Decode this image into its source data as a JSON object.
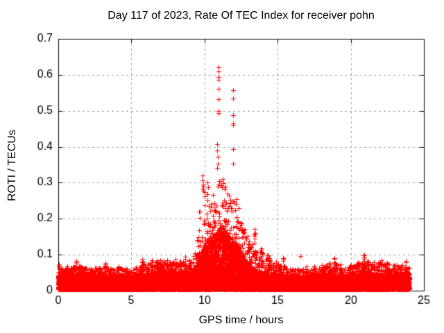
{
  "page": {
    "background": "#ffffff"
  },
  "chart_data": {
    "type": "scatter",
    "title": "Day 117 of 2023, Rate Of TEC Index for receiver pohn",
    "xlabel": "GPS time / hours",
    "ylabel": "ROTI / TECUs",
    "xlim": [
      0,
      25
    ],
    "ylim": [
      0,
      0.7
    ],
    "xticks": [
      0,
      5,
      10,
      15,
      20,
      25
    ],
    "xtick_labels": [
      "0",
      "5",
      "10",
      "15",
      "20",
      "25"
    ],
    "ytick_values": [
      0,
      0.1,
      0.2,
      0.3,
      0.4,
      0.5,
      0.6,
      0.7
    ],
    "ytick_labels": [
      "0",
      "0.1",
      "0.2",
      "0.3",
      "0.4",
      "0.5",
      "0.6",
      "0.7"
    ],
    "grid": true,
    "legend": "none",
    "marker": {
      "shape": "plus",
      "size": 7,
      "color": "#ff0000"
    },
    "axis_color": "#000000",
    "grid_color": "#a0a0a0",
    "text_color": "#000000",
    "data_time_range": [
      0,
      24
    ],
    "envelope": [
      [
        0.0,
        0.045,
        0.065
      ],
      [
        1.0,
        0.045,
        0.07
      ],
      [
        2.0,
        0.042,
        0.065
      ],
      [
        3.0,
        0.04,
        0.065
      ],
      [
        4.0,
        0.04,
        0.065
      ],
      [
        5.0,
        0.038,
        0.06
      ],
      [
        6.0,
        0.045,
        0.075
      ],
      [
        7.0,
        0.05,
        0.085
      ],
      [
        8.0,
        0.05,
        0.085
      ],
      [
        9.0,
        0.05,
        0.08
      ],
      [
        9.3,
        0.055,
        0.1
      ],
      [
        9.6,
        0.09,
        0.2
      ],
      [
        9.9,
        0.13,
        0.3
      ],
      [
        10.2,
        0.15,
        0.27
      ],
      [
        10.5,
        0.16,
        0.26
      ],
      [
        10.8,
        0.17,
        0.3
      ],
      [
        11.1,
        0.19,
        0.33
      ],
      [
        11.4,
        0.19,
        0.3
      ],
      [
        11.7,
        0.16,
        0.27
      ],
      [
        12.0,
        0.15,
        0.26
      ],
      [
        12.3,
        0.13,
        0.22
      ],
      [
        12.6,
        0.1,
        0.19
      ],
      [
        13.0,
        0.075,
        0.15
      ],
      [
        13.5,
        0.055,
        0.13
      ],
      [
        14.0,
        0.05,
        0.11
      ],
      [
        14.5,
        0.045,
        0.09
      ],
      [
        15.0,
        0.04,
        0.075
      ],
      [
        16.0,
        0.037,
        0.06
      ],
      [
        17.0,
        0.037,
        0.06
      ],
      [
        18.0,
        0.04,
        0.065
      ],
      [
        18.8,
        0.045,
        0.08
      ],
      [
        19.5,
        0.04,
        0.065
      ],
      [
        20.5,
        0.042,
        0.075
      ],
      [
        21.0,
        0.05,
        0.085
      ],
      [
        21.5,
        0.045,
        0.075
      ],
      [
        22.0,
        0.045,
        0.08
      ],
      [
        23.0,
        0.042,
        0.07
      ],
      [
        23.7,
        0.048,
        0.075
      ],
      [
        24.0,
        0.05,
        0.07
      ]
    ],
    "quiet_spikes": [
      [
        0.05,
        0.075
      ],
      [
        0.45,
        0.062
      ],
      [
        0.9,
        0.065
      ],
      [
        1.25,
        0.085
      ],
      [
        1.55,
        0.075
      ],
      [
        1.8,
        0.07
      ],
      [
        2.3,
        0.062
      ],
      [
        2.7,
        0.065
      ],
      [
        3.2,
        0.08
      ],
      [
        3.6,
        0.062
      ],
      [
        4.1,
        0.07
      ],
      [
        4.6,
        0.058
      ],
      [
        5.3,
        0.062
      ],
      [
        5.75,
        0.09
      ],
      [
        6.1,
        0.075
      ],
      [
        6.45,
        0.09
      ],
      [
        6.8,
        0.085
      ],
      [
        7.1,
        0.095
      ],
      [
        7.4,
        0.082
      ],
      [
        7.7,
        0.078
      ],
      [
        8.0,
        0.09
      ],
      [
        8.35,
        0.082
      ],
      [
        8.7,
        0.095
      ],
      [
        9.0,
        0.09
      ],
      [
        13.4,
        0.165
      ],
      [
        13.9,
        0.12
      ],
      [
        14.4,
        0.1
      ],
      [
        14.9,
        0.085
      ],
      [
        15.4,
        0.095
      ],
      [
        16.0,
        0.072
      ],
      [
        17.0,
        0.068
      ],
      [
        17.5,
        0.072
      ],
      [
        18.0,
        0.072
      ],
      [
        18.5,
        0.08
      ],
      [
        18.9,
        0.095
      ],
      [
        19.3,
        0.075
      ],
      [
        20.0,
        0.072
      ],
      [
        20.5,
        0.08
      ],
      [
        20.9,
        0.1
      ],
      [
        21.2,
        0.088
      ],
      [
        21.6,
        0.08
      ],
      [
        22.1,
        0.09
      ],
      [
        22.5,
        0.08
      ],
      [
        23.0,
        0.075
      ],
      [
        23.4,
        0.082
      ],
      [
        23.8,
        0.085
      ]
    ],
    "notable_points": [
      [
        9.62,
        0.22
      ],
      [
        9.85,
        0.32
      ],
      [
        9.86,
        0.283
      ],
      [
        9.88,
        0.307
      ],
      [
        9.9,
        0.295
      ],
      [
        9.92,
        0.278
      ],
      [
        10.22,
        0.3
      ],
      [
        10.25,
        0.288
      ],
      [
        10.87,
        0.406
      ],
      [
        10.88,
        0.39
      ],
      [
        10.88,
        0.342
      ],
      [
        10.89,
        0.372
      ],
      [
        10.9,
        0.352
      ],
      [
        10.95,
        0.609
      ],
      [
        10.95,
        0.532
      ],
      [
        10.96,
        0.62
      ],
      [
        10.96,
        0.594
      ],
      [
        10.96,
        0.561
      ],
      [
        10.96,
        0.499
      ],
      [
        10.97,
        0.586
      ],
      [
        10.97,
        0.494
      ],
      [
        11.25,
        0.31
      ],
      [
        11.28,
        0.298
      ],
      [
        11.95,
        0.535
      ],
      [
        11.95,
        0.393
      ],
      [
        11.96,
        0.557
      ],
      [
        11.96,
        0.487
      ],
      [
        11.96,
        0.46
      ],
      [
        11.97,
        0.465
      ],
      [
        11.97,
        0.352
      ],
      [
        12.2,
        0.255
      ],
      [
        12.35,
        0.23
      ],
      [
        13.42,
        0.172
      ],
      [
        13.45,
        0.16
      ],
      [
        16.54,
        0.096
      ]
    ],
    "generation": {
      "seed": 1170423,
      "dt_hours": 0.0083333,
      "points_per_step": 7
    }
  }
}
